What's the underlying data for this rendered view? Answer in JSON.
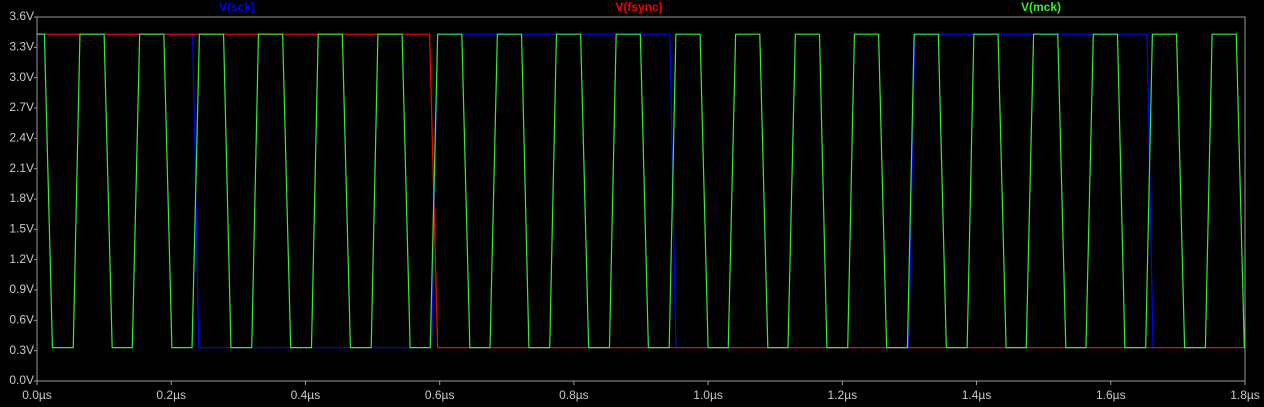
{
  "chart_data": {
    "type": "line",
    "xlim": [
      0,
      1.8
    ],
    "xticks": [
      {
        "value": 0,
        "label": "0.0µs"
      },
      {
        "value": 0.2,
        "label": "0.2µs"
      },
      {
        "value": 0.4,
        "label": "0.4µs"
      },
      {
        "value": 0.6,
        "label": "0.6µs"
      },
      {
        "value": 0.8,
        "label": "0.8µs"
      },
      {
        "value": 1.0,
        "label": "1.0µs"
      },
      {
        "value": 1.2,
        "label": "1.2µs"
      },
      {
        "value": 1.4,
        "label": "1.4µs"
      },
      {
        "value": 1.6,
        "label": "1.6µs"
      },
      {
        "value": 1.8,
        "label": "1.8µs"
      }
    ],
    "ylim": [
      0,
      3.6
    ],
    "yticks": [
      {
        "value": 0,
        "label": "0.0V"
      },
      {
        "value": 0.3,
        "label": "0.3V"
      },
      {
        "value": 0.6,
        "label": "0.6V"
      },
      {
        "value": 0.9,
        "label": "0.9V"
      },
      {
        "value": 1.2,
        "label": "1.2V"
      },
      {
        "value": 1.5,
        "label": "1.5V"
      },
      {
        "value": 1.8,
        "label": "1.8V"
      },
      {
        "value": 2.1,
        "label": "2.1V"
      },
      {
        "value": 2.4,
        "label": "2.4V"
      },
      {
        "value": 2.7,
        "label": "2.7V"
      },
      {
        "value": 3.0,
        "label": "3.0V"
      },
      {
        "value": 3.3,
        "label": "3.3V"
      },
      {
        "value": 3.6,
        "label": "3.6V"
      }
    ],
    "grid": false,
    "series": [
      {
        "name": "V(sck)",
        "color": "#0000ff",
        "x": [
          0,
          0.232,
          0.241,
          0.588,
          0.597,
          0.943,
          0.952,
          1.299,
          1.308,
          1.654,
          1.663,
          1.8
        ],
        "values": [
          3.43,
          3.43,
          0.33,
          0.33,
          3.43,
          3.43,
          0.33,
          0.33,
          3.43,
          3.43,
          0.33,
          0.33
        ]
      },
      {
        "name": "V(fsync)",
        "color": "#ff0000",
        "x": [
          0,
          0.585,
          0.597,
          1.8
        ],
        "values": [
          3.43,
          3.43,
          0.33,
          0.33
        ]
      },
      {
        "name": "V(mck)",
        "color": "#33ee33",
        "x": [
          0,
          0.011,
          0.023,
          0.054,
          0.064,
          0.1,
          0.112,
          0.142,
          0.153,
          0.189,
          0.201,
          0.231,
          0.242,
          0.278,
          0.289,
          0.32,
          0.33,
          0.366,
          0.378,
          0.409,
          0.419,
          0.455,
          0.467,
          0.498,
          0.508,
          0.544,
          0.556,
          0.586,
          0.597,
          0.633,
          0.645,
          0.675,
          0.686,
          0.722,
          0.733,
          0.764,
          0.774,
          0.81,
          0.822,
          0.853,
          0.863,
          0.899,
          0.911,
          0.942,
          0.952,
          0.988,
          1.0,
          1.03,
          1.041,
          1.077,
          1.089,
          1.119,
          1.13,
          1.166,
          1.177,
          1.208,
          1.218,
          1.254,
          1.266,
          1.297,
          1.307,
          1.343,
          1.355,
          1.386,
          1.396,
          1.432,
          1.444,
          1.474,
          1.485,
          1.521,
          1.533,
          1.563,
          1.574,
          1.61,
          1.621,
          1.652,
          1.662,
          1.698,
          1.71,
          1.741,
          1.751,
          1.787,
          1.799,
          1.8
        ],
        "values": [
          3.43,
          3.43,
          0.33,
          0.33,
          3.43,
          3.43,
          0.33,
          0.33,
          3.43,
          3.43,
          0.33,
          0.33,
          3.43,
          3.43,
          0.33,
          0.33,
          3.43,
          3.43,
          0.33,
          0.33,
          3.43,
          3.43,
          0.33,
          0.33,
          3.43,
          3.43,
          0.33,
          0.33,
          3.43,
          3.43,
          0.33,
          0.33,
          3.43,
          3.43,
          0.33,
          0.33,
          3.43,
          3.43,
          0.33,
          0.33,
          3.43,
          3.43,
          0.33,
          0.33,
          3.43,
          3.43,
          0.33,
          0.33,
          3.43,
          3.43,
          0.33,
          0.33,
          3.43,
          3.43,
          0.33,
          0.33,
          3.43,
          3.43,
          0.33,
          0.33,
          3.43,
          3.43,
          0.33,
          0.33,
          3.43,
          3.43,
          0.33,
          0.33,
          3.43,
          3.43,
          0.33,
          0.33,
          3.43,
          3.43,
          0.33,
          0.33,
          3.43,
          3.43,
          0.33,
          0.33,
          3.43,
          3.43,
          0.33,
          0.33
        ]
      }
    ]
  }
}
